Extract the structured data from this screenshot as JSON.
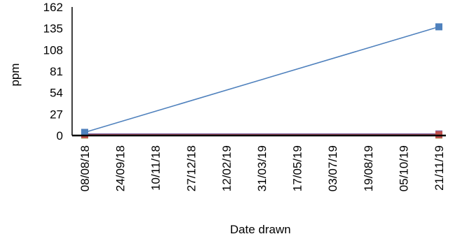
{
  "chart_data": {
    "type": "line",
    "xlabel": "Date drawn",
    "ylabel": "ppm",
    "ylim": [
      0,
      162
    ],
    "yticks": [
      0,
      27,
      54,
      81,
      108,
      135,
      162
    ],
    "xtick_labels": [
      "08/08/18",
      "24/09/18",
      "10/11/18",
      "27/12/18",
      "12/02/19",
      "31/03/19",
      "17/05/19",
      "03/07/19",
      "19/08/19",
      "05/10/19",
      "21/11/19"
    ],
    "grid": false,
    "legend": "none",
    "series": [
      {
        "color": "#4f81bd",
        "marker": "square",
        "points": [
          {
            "x": "08/08/18",
            "y": 4
          },
          {
            "x": "21/11/19",
            "y": 137
          }
        ]
      },
      {
        "color": "#c0504d",
        "marker": "square",
        "points": [
          {
            "x": "08/08/18",
            "y": 1
          },
          {
            "x": "21/11/19",
            "y": 1
          }
        ]
      },
      {
        "color": "#9bbb59",
        "marker": "square",
        "points": [
          {
            "x": "08/08/18",
            "y": 0.5
          },
          {
            "x": "21/11/19",
            "y": 0.5
          }
        ]
      },
      {
        "color": "#8064a2",
        "marker": "square",
        "points": [
          {
            "x": "08/08/18",
            "y": 2
          },
          {
            "x": "21/11/19",
            "y": 2
          }
        ]
      }
    ]
  }
}
